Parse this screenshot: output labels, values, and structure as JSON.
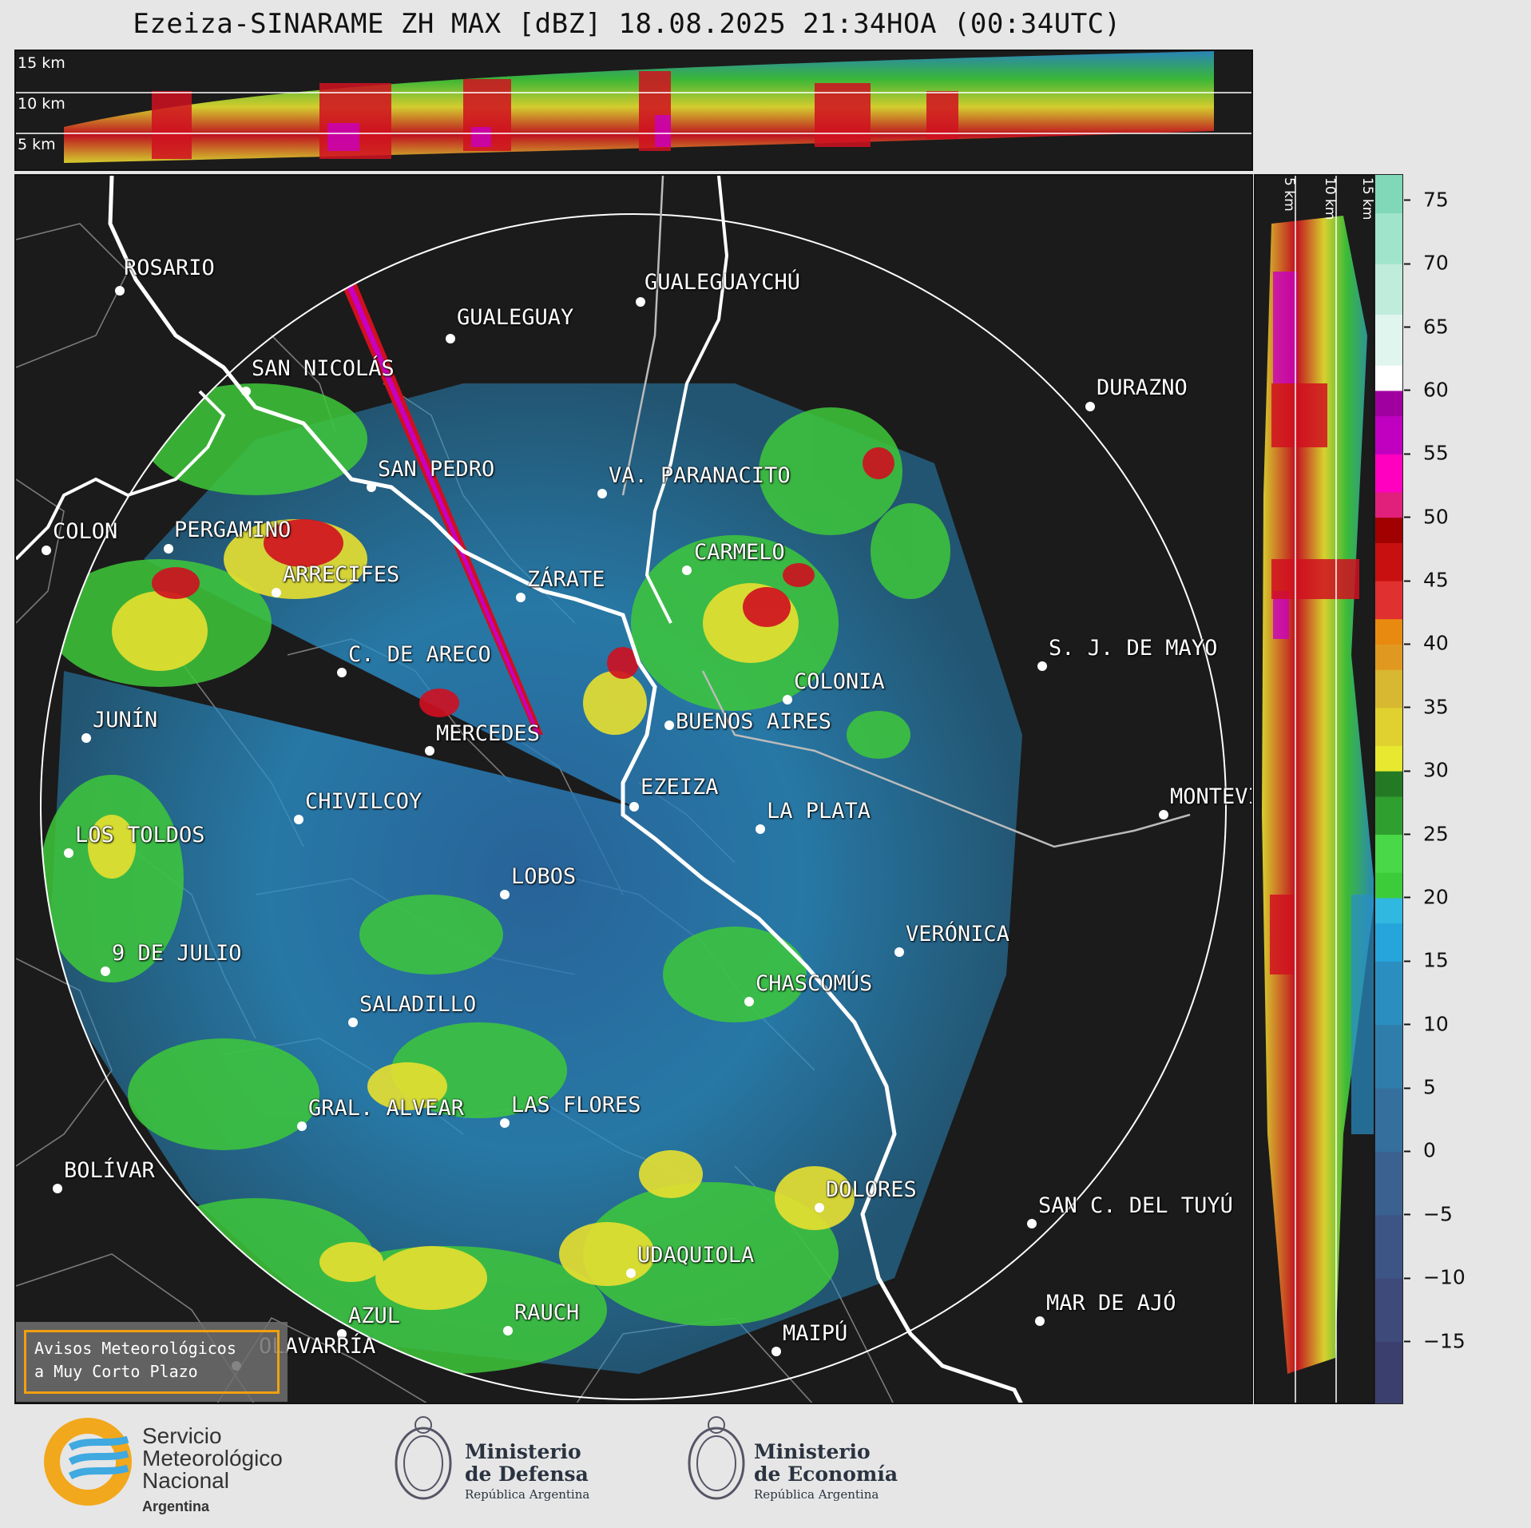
{
  "title": "Ezeiza-SINARAME ZH MAX [dBZ] 18.08.2025 21:34HOA (00:34UTC)",
  "top_panel": {
    "altitude_labels": [
      "15 km",
      "10 km",
      "5 km"
    ]
  },
  "side_panel": {
    "altitude_labels": [
      "5 km",
      "10 km",
      "15 km"
    ]
  },
  "colorbar": {
    "unit": "dBZ",
    "ticks": [
      "75",
      "70",
      "65",
      "60",
      "55",
      "50",
      "45",
      "40",
      "35",
      "30",
      "25",
      "20",
      "15",
      "10",
      "5",
      "0",
      "−5",
      "−10",
      "−15"
    ],
    "range": [
      -20,
      77
    ]
  },
  "cities": {
    "rosario": "ROSARIO",
    "gualeguaychu": "GUALEGUAYCHÚ",
    "gualeguay": "GUALEGUAY",
    "san_nicolas": "SAN NICOLÁS",
    "durazno": "DURAZNO",
    "san_pedro": "SAN PEDRO",
    "va_paranacito": "VA. PARANACITO",
    "colon": "COLON",
    "pergamino": "PERGAMINO",
    "carmelo": "CARMELO",
    "arrecifes": "ARRECIFES",
    "zarate": "ZÁRATE",
    "sj_de_mayo": "S. J. DE MAYO",
    "c_de_areco": "C. DE ARECO",
    "colonia": "COLONIA",
    "junin": "JUNÍN",
    "buenos_aires": "BUENOS AIRES",
    "mercedes": "MERCEDES",
    "ezeiza": "EZEIZA",
    "montevideo": "MONTEVIDEO",
    "chivilcoy": "CHIVILCOY",
    "la_plata": "LA PLATA",
    "los_toldos": "LOS TOLDOS",
    "lobos": "LOBOS",
    "veronica": "VERÓNICA",
    "nueve_de_julio": "9 DE JULIO",
    "chascomus": "CHASCOMÚS",
    "saladillo": "SALADILLO",
    "gral_alvear": "GRAL. ALVEAR",
    "las_flores": "LAS FLORES",
    "bolivar": "BOLÍVAR",
    "dolores": "DOLORES",
    "san_c_del_tuyu": "SAN C. DEL TUYÚ",
    "udaquiola": "UDAQUIOLA",
    "mar_de_ajo": "MAR DE AJÓ",
    "azul": "AZUL",
    "rauch": "RAUCH",
    "olavarria": "OLAVARRÍA",
    "maipu": "MAIPÚ"
  },
  "avisos": {
    "line1": "Avisos Meteorológicos",
    "line2": "a Muy Corto Plazo"
  },
  "footer": {
    "smn_line1": "Servicio",
    "smn_line2": "Meteorológico",
    "smn_line3": "Nacional",
    "smn_line4": "Argentina",
    "defensa_line1": "Ministerio",
    "defensa_line2": "de Defensa",
    "defensa_line3": "República Argentina",
    "economia_line1": "Ministerio",
    "economia_line2": "de Economía",
    "economia_line3": "República Argentina"
  },
  "colors": {
    "background": "#1b1b1b",
    "echo_blue": "#2a8fc8",
    "echo_green": "#3ec83a",
    "echo_yellow": "#e8e030",
    "echo_red": "#d01020",
    "echo_magenta": "#c800c0",
    "accent_orange": "#f0a010"
  }
}
